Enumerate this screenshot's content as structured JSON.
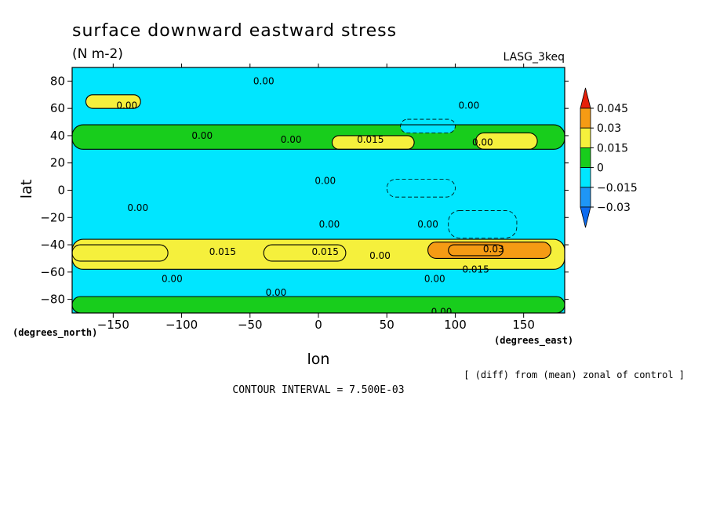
{
  "chart_data": {
    "type": "heatmap",
    "title": "surface downward eastward stress",
    "units": "(N m-2)",
    "dataset": "LASG_3keq",
    "xlabel": "lon",
    "ylabel": "lat",
    "x_units": "(degrees_east)",
    "y_units": "(degrees_north)",
    "xlim": [
      -180,
      180
    ],
    "ylim": [
      -90,
      90
    ],
    "x_ticks": [
      -150,
      -100,
      -50,
      0,
      50,
      100,
      150
    ],
    "y_ticks": [
      -80,
      -60,
      -40,
      -20,
      0,
      20,
      40,
      60,
      80
    ],
    "x_tick_labels": [
      "-150",
      "-100",
      "-50",
      "0",
      "50",
      "100",
      "150"
    ],
    "y_tick_labels": [
      "-80",
      "-60",
      "-40",
      "-20",
      "0",
      "20",
      "40",
      "60",
      "80"
    ],
    "note": "[ (diff) from (mean) zonal of control ]",
    "contour_interval_text": "CONTOUR INTERVAL = 7.500E-03",
    "contour_interval": 0.0075,
    "colorbar": {
      "levels": [
        -0.03,
        -0.015,
        0,
        0.015,
        0.03,
        0.045
      ],
      "labels": [
        "0.045",
        "0.03",
        "0.015",
        "0",
        "-0.015",
        "-0.03"
      ],
      "colors": [
        "#0d6cf0",
        "#1e96f5",
        "#00e6ff",
        "#18cd1c",
        "#f5f03c",
        "#f59b14",
        "#e6200a"
      ]
    },
    "regions": [
      {
        "lat_band": [
          -90,
          -78
        ],
        "lon": [
          -180,
          180
        ],
        "value": 0.0
      },
      {
        "lat_band": [
          -58,
          -36
        ],
        "lon": [
          -180,
          180
        ],
        "value": 0.015
      },
      {
        "lat_band": [
          -52,
          -40
        ],
        "lon": [
          -180,
          -110
        ],
        "value": 0.025
      },
      {
        "lat_band": [
          -52,
          -40
        ],
        "lon": [
          -40,
          20
        ],
        "value": 0.025
      },
      {
        "lat_band": [
          -50,
          -38
        ],
        "lon": [
          80,
          170
        ],
        "value": 0.03
      },
      {
        "lat_band": [
          -48,
          -40
        ],
        "lon": [
          95,
          135
        ],
        "value": 0.04
      },
      {
        "lat_band": [
          30,
          48
        ],
        "lon": [
          -180,
          180
        ],
        "value": 0.008
      },
      {
        "lat_band": [
          30,
          40
        ],
        "lon": [
          10,
          70
        ],
        "value": 0.022
      },
      {
        "lat_band": [
          30,
          42
        ],
        "lon": [
          115,
          160
        ],
        "value": 0.022
      },
      {
        "lat_band": [
          42,
          52
        ],
        "lon": [
          60,
          100
        ],
        "value": -0.01
      },
      {
        "lat_band": [
          -5,
          8
        ],
        "lon": [
          50,
          100
        ],
        "value": -0.012
      },
      {
        "lat_band": [
          -35,
          -15
        ],
        "lon": [
          95,
          145
        ],
        "value": -0.012
      },
      {
        "lat_band": [
          60,
          70
        ],
        "lon": [
          -170,
          -130
        ],
        "value": 0.018
      }
    ],
    "contour_labels": [
      {
        "text": "0.00",
        "lon": -40,
        "lat": 80
      },
      {
        "text": "0.00",
        "lon": -140,
        "lat": 62
      },
      {
        "text": "0.00",
        "lon": 110,
        "lat": 62
      },
      {
        "text": "0.00",
        "lon": -85,
        "lat": 40
      },
      {
        "text": "0.00",
        "lon": -20,
        "lat": 37
      },
      {
        "text": "0.015",
        "lon": 38,
        "lat": 37
      },
      {
        "text": "0.00",
        "lon": 120,
        "lat": 35
      },
      {
        "text": "0.00",
        "lon": 5,
        "lat": 7
      },
      {
        "text": "0.00",
        "lon": -132,
        "lat": -13
      },
      {
        "text": "0.00",
        "lon": 8,
        "lat": -25
      },
      {
        "text": "0.00",
        "lon": 80,
        "lat": -25
      },
      {
        "text": "0.015",
        "lon": -70,
        "lat": -45
      },
      {
        "text": "0.015",
        "lon": 5,
        "lat": -45
      },
      {
        "text": "0.00",
        "lon": 45,
        "lat": -48
      },
      {
        "text": "0.03",
        "lon": 128,
        "lat": -43
      },
      {
        "text": "0.015",
        "lon": 115,
        "lat": -58
      },
      {
        "text": "0.00",
        "lon": -107,
        "lat": -65
      },
      {
        "text": "0.00",
        "lon": 85,
        "lat": -65
      },
      {
        "text": "0.00",
        "lon": -31,
        "lat": -75
      },
      {
        "text": "0.00",
        "lon": 90,
        "lat": -89
      }
    ]
  }
}
